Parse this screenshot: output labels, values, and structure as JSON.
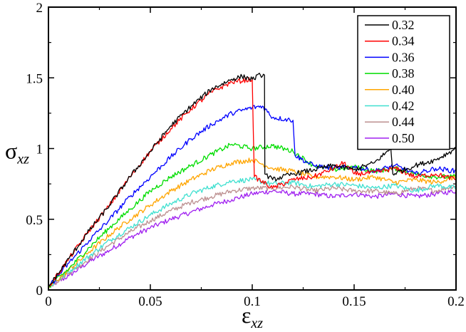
{
  "chart_data": {
    "type": "line",
    "xlabel": "εxz",
    "ylabel": "σxz",
    "axis_labels": {
      "x": {
        "symbol": "ε",
        "subscript": "xz"
      },
      "y": {
        "symbol": "σ",
        "subscript": "xz"
      }
    },
    "xlim": [
      0,
      0.2
    ],
    "ylim": [
      0,
      2
    ],
    "x_ticks": [
      0,
      0.05,
      0.1,
      0.15,
      0.2
    ],
    "x_tick_labels": [
      "0",
      "0.05",
      "0.1",
      "0.15",
      "0.2"
    ],
    "y_ticks": [
      0,
      0.5,
      1,
      1.5,
      2
    ],
    "y_tick_labels": [
      "0",
      "0.5",
      "1",
      "1.5",
      "2"
    ],
    "grid": false,
    "legend_position": "top-right",
    "series": [
      {
        "name": "0.32",
        "color": "#000000",
        "x": [
          0,
          0.01,
          0.02,
          0.03,
          0.04,
          0.05,
          0.06,
          0.07,
          0.08,
          0.09,
          0.095,
          0.1,
          0.104,
          0.106,
          0.1062,
          0.11,
          0.12,
          0.13,
          0.14,
          0.15,
          0.16,
          0.168,
          0.169,
          0.18,
          0.19,
          0.2
        ],
        "y": [
          0.02,
          0.22,
          0.42,
          0.6,
          0.8,
          0.98,
          1.16,
          1.3,
          1.42,
          1.49,
          1.51,
          1.49,
          1.52,
          1.52,
          0.82,
          0.78,
          0.82,
          0.85,
          0.88,
          0.85,
          0.9,
          1.0,
          0.82,
          0.88,
          0.92,
          1.0
        ]
      },
      {
        "name": "0.34",
        "color": "#ff0000",
        "x": [
          0,
          0.01,
          0.02,
          0.03,
          0.04,
          0.05,
          0.06,
          0.07,
          0.08,
          0.09,
          0.1,
          0.101,
          0.11,
          0.12,
          0.13,
          0.14,
          0.145,
          0.15,
          0.16,
          0.17,
          0.18,
          0.19,
          0.2
        ],
        "y": [
          0.02,
          0.22,
          0.42,
          0.6,
          0.8,
          0.98,
          1.14,
          1.28,
          1.4,
          1.47,
          1.49,
          0.8,
          0.72,
          0.78,
          0.8,
          0.86,
          0.9,
          0.82,
          0.83,
          0.86,
          0.8,
          0.82,
          0.78
        ]
      },
      {
        "name": "0.36",
        "color": "#0000ff",
        "x": [
          0,
          0.01,
          0.02,
          0.03,
          0.04,
          0.05,
          0.06,
          0.07,
          0.08,
          0.09,
          0.1,
          0.105,
          0.11,
          0.12,
          0.121,
          0.13,
          0.14,
          0.15,
          0.16,
          0.17,
          0.18,
          0.19,
          0.2
        ],
        "y": [
          0.02,
          0.19,
          0.35,
          0.5,
          0.66,
          0.8,
          0.94,
          1.07,
          1.17,
          1.25,
          1.29,
          1.3,
          1.22,
          1.2,
          0.95,
          0.88,
          0.86,
          0.87,
          0.84,
          0.88,
          0.82,
          0.86,
          0.84
        ]
      },
      {
        "name": "0.38",
        "color": "#00dd00",
        "x": [
          0,
          0.01,
          0.02,
          0.03,
          0.04,
          0.05,
          0.06,
          0.07,
          0.08,
          0.09,
          0.1,
          0.11,
          0.12,
          0.13,
          0.14,
          0.15,
          0.16,
          0.17,
          0.18,
          0.19,
          0.2
        ],
        "y": [
          0.02,
          0.15,
          0.3,
          0.44,
          0.57,
          0.7,
          0.8,
          0.88,
          0.96,
          1.03,
          1.0,
          1.02,
          0.98,
          0.88,
          0.85,
          0.87,
          0.84,
          0.86,
          0.82,
          0.8,
          0.8
        ]
      },
      {
        "name": "0.40",
        "color": "#ffa500",
        "x": [
          0,
          0.01,
          0.02,
          0.03,
          0.04,
          0.05,
          0.06,
          0.07,
          0.08,
          0.09,
          0.1,
          0.11,
          0.12,
          0.13,
          0.14,
          0.15,
          0.16,
          0.17,
          0.18,
          0.19,
          0.2
        ],
        "y": [
          0.02,
          0.14,
          0.27,
          0.39,
          0.5,
          0.6,
          0.7,
          0.78,
          0.85,
          0.9,
          0.92,
          0.86,
          0.84,
          0.8,
          0.8,
          0.78,
          0.8,
          0.76,
          0.78,
          0.76,
          0.8
        ]
      },
      {
        "name": "0.42",
        "color": "#40e0d0",
        "x": [
          0,
          0.01,
          0.02,
          0.03,
          0.04,
          0.05,
          0.06,
          0.07,
          0.08,
          0.09,
          0.1,
          0.11,
          0.12,
          0.13,
          0.14,
          0.15,
          0.16,
          0.17,
          0.18,
          0.19,
          0.2
        ],
        "y": [
          0.02,
          0.13,
          0.24,
          0.35,
          0.44,
          0.53,
          0.61,
          0.68,
          0.73,
          0.77,
          0.78,
          0.75,
          0.76,
          0.73,
          0.75,
          0.74,
          0.72,
          0.74,
          0.7,
          0.74,
          0.72
        ]
      },
      {
        "name": "0.44",
        "color": "#bc8f8f",
        "x": [
          0,
          0.01,
          0.02,
          0.03,
          0.04,
          0.05,
          0.06,
          0.07,
          0.08,
          0.09,
          0.1,
          0.11,
          0.12,
          0.13,
          0.14,
          0.15,
          0.16,
          0.17,
          0.18,
          0.19,
          0.2
        ],
        "y": [
          0.02,
          0.12,
          0.22,
          0.32,
          0.41,
          0.49,
          0.56,
          0.62,
          0.66,
          0.7,
          0.72,
          0.72,
          0.73,
          0.7,
          0.72,
          0.7,
          0.7,
          0.68,
          0.72,
          0.7,
          0.74
        ]
      },
      {
        "name": "0.50",
        "color": "#a020f0",
        "x": [
          0,
          0.01,
          0.02,
          0.03,
          0.04,
          0.05,
          0.06,
          0.07,
          0.08,
          0.09,
          0.1,
          0.11,
          0.12,
          0.13,
          0.14,
          0.15,
          0.16,
          0.17,
          0.18,
          0.19,
          0.2
        ],
        "y": [
          0.02,
          0.1,
          0.2,
          0.28,
          0.37,
          0.44,
          0.5,
          0.55,
          0.6,
          0.64,
          0.68,
          0.7,
          0.68,
          0.68,
          0.66,
          0.68,
          0.66,
          0.68,
          0.66,
          0.68,
          0.7
        ]
      }
    ]
  }
}
